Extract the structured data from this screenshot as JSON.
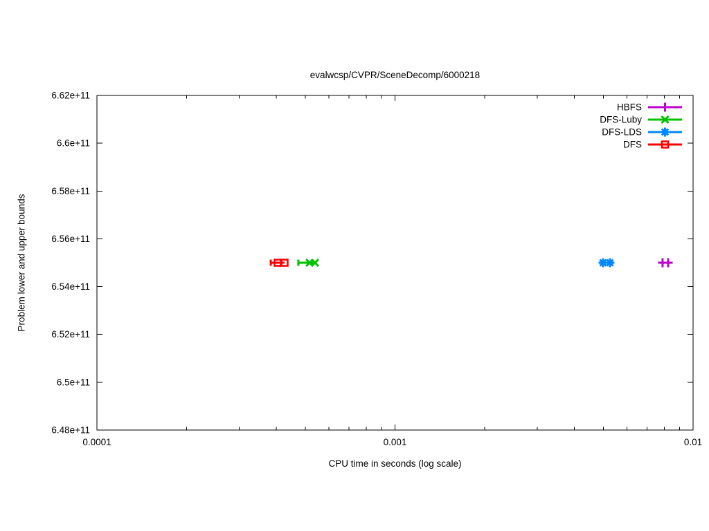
{
  "chart_data": {
    "type": "scatter",
    "title": "evalwcsp/CVPR/SceneDecomp/6000218",
    "xlabel": "CPU time in seconds (log scale)",
    "ylabel": "Problem lower and upper bounds",
    "x_scale": "log",
    "xlim": [
      0.0001,
      0.01
    ],
    "ylim": [
      648000000000.0,
      662000000000.0
    ],
    "grid": false,
    "frame_color": "#000000",
    "text_color": "#000000",
    "legend_position": "top-right-inside",
    "x_ticks": [
      {
        "value": 0.0001,
        "label": "0.0001"
      },
      {
        "value": 0.001,
        "label": "0.001"
      },
      {
        "value": 0.01,
        "label": "0.01"
      }
    ],
    "x_minor_ticks": "log-2-to-9-per-decade",
    "y_ticks": [
      {
        "value": 648000000000.0,
        "label": "6.48e+11"
      },
      {
        "value": 650000000000.0,
        "label": "6.5e+11"
      },
      {
        "value": 652000000000.0,
        "label": "6.52e+11"
      },
      {
        "value": 654000000000.0,
        "label": "6.54e+11"
      },
      {
        "value": 656000000000.0,
        "label": "6.56e+11"
      },
      {
        "value": 658000000000.0,
        "label": "6.58e+11"
      },
      {
        "value": 660000000000.0,
        "label": "6.6e+11"
      },
      {
        "value": 662000000000.0,
        "label": "6.62e+11"
      }
    ],
    "series": [
      {
        "name": "HBFS",
        "color": "#bb00cc",
        "marker": "plus",
        "y": 655000000000.0,
        "marker_x": [
          0.0079,
          0.00825
        ],
        "line_x": [
          0.0079,
          0.00825
        ],
        "cap_x": []
      },
      {
        "name": "DFS-Luby",
        "color": "#00c000",
        "marker": "x",
        "y": 655000000000.0,
        "marker_x": [
          0.000517,
          0.000539
        ],
        "line_x": [
          0.000474,
          0.000539
        ],
        "cap_x": [
          0.000474
        ]
      },
      {
        "name": "DFS-LDS",
        "color": "#0087ff",
        "marker": "asterisk",
        "y": 655000000000.0,
        "marker_x": [
          0.00499,
          0.00526
        ],
        "line_x": [
          0.00499,
          0.00526
        ],
        "cap_x": []
      },
      {
        "name": "DFS",
        "color": "#ff0000",
        "marker": "square",
        "y": 655000000000.0,
        "marker_x": [
          0.000404,
          0.000426
        ],
        "line_x": [
          0.000383,
          0.000426
        ],
        "cap_x": [
          0.000383
        ]
      }
    ]
  }
}
